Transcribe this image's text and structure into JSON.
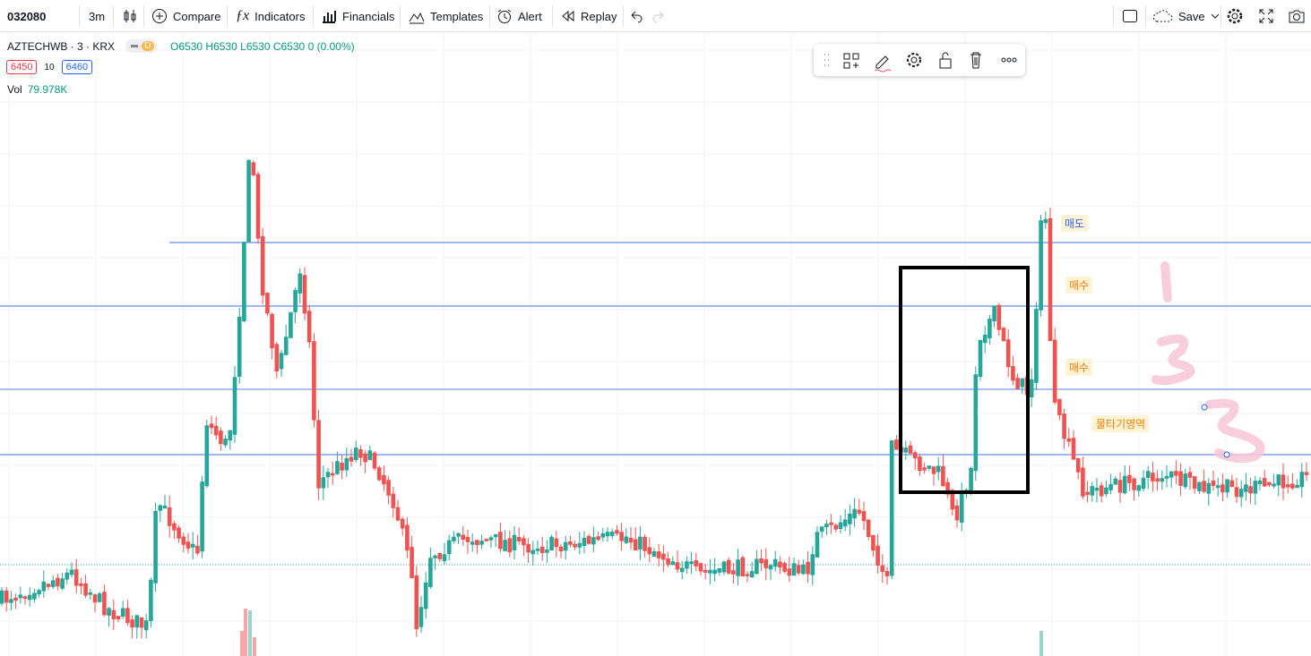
{
  "toolbar": {
    "symbol": "032080",
    "interval": "3m",
    "items": [
      "Compare",
      "Indicators",
      "Financials",
      "Templates",
      "Alert",
      "Replay"
    ],
    "save": "Save"
  },
  "legend": {
    "title": "AZTECHWB · 3 · KRX",
    "badge": "D",
    "ohlc": [
      {
        "label": "O",
        "value": 6530
      },
      {
        "label": "H",
        "value": 6530
      },
      {
        "label": "L",
        "value": 6530
      },
      {
        "label": "C",
        "value": 6530
      }
    ],
    "change": 0,
    "change_pct": "(0.00%)",
    "bid": 6450,
    "spread": 10,
    "ask": 6460,
    "volume_label": "Vol",
    "volume": "79.978K"
  },
  "annotations": [
    "매도",
    "매수",
    "매수",
    "물타기영역"
  ]
}
